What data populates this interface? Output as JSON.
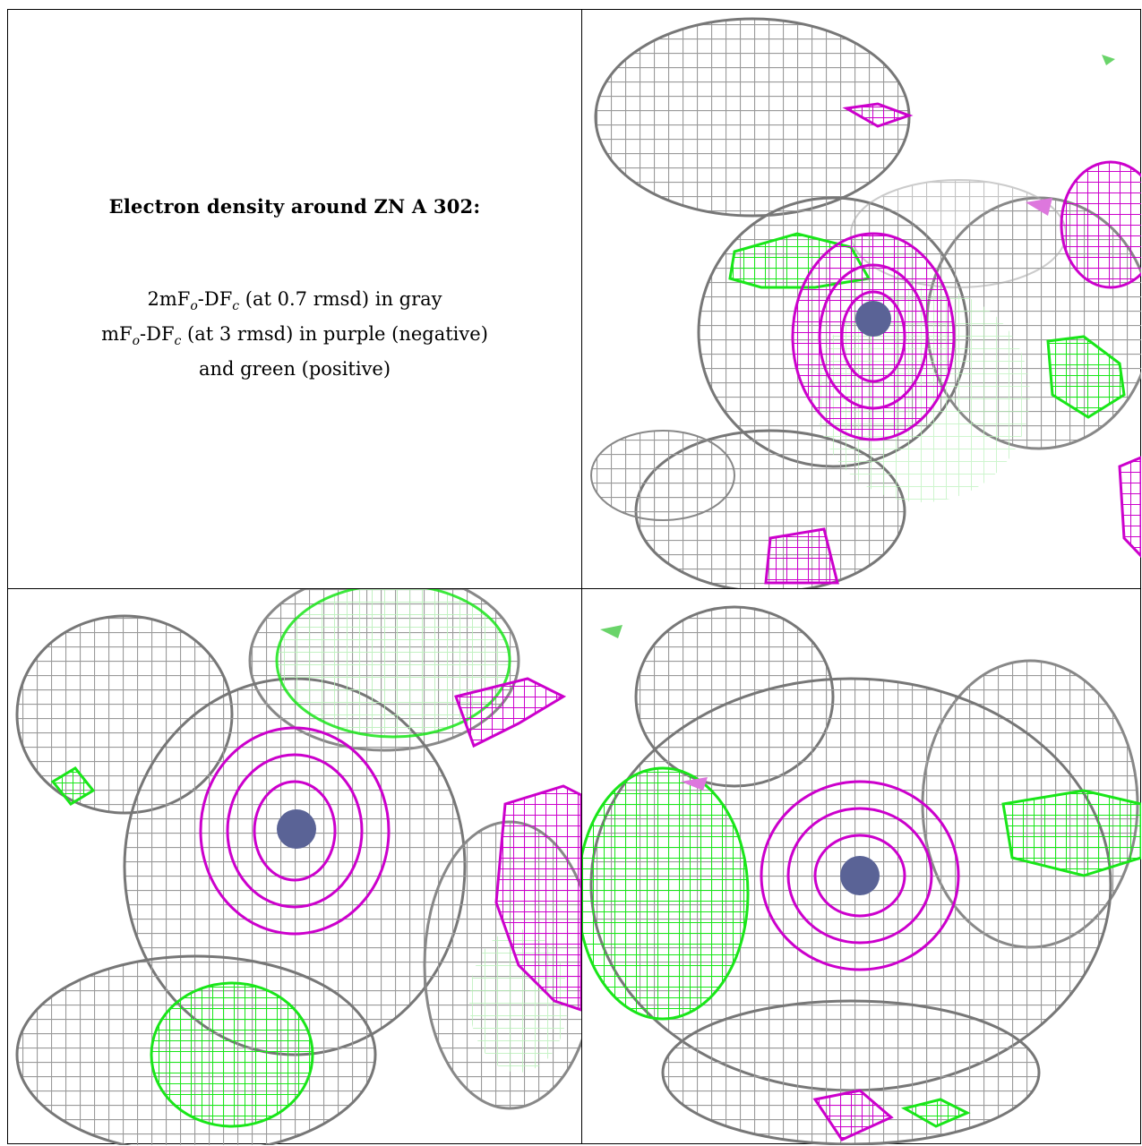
{
  "figure": {
    "title": "Electron density around ZN A 302:",
    "line1": {
      "prefix": "2mF",
      "sub1": "o",
      "mid": "-DF",
      "sub2": "c",
      "suffix": " (at 0.7 rmsd) in gray"
    },
    "line2": {
      "prefix": "mF",
      "sub1": "o",
      "mid": "-DF",
      "sub2": "c",
      "suffix": " (at 3 rmsd) in purple (negative)"
    },
    "line3": "and green (positive)"
  },
  "colors": {
    "gray_mesh": "#a9a9a9",
    "dark_mesh": "#6e6e6e",
    "purple_mesh": "#cc00cc",
    "green_mesh": "#19e619",
    "zinc_atom": "#5a6396",
    "border": "#000000"
  },
  "panels": [
    {
      "name": "view-top-right",
      "icon": "density-mesh"
    },
    {
      "name": "view-bottom-left",
      "icon": "density-mesh"
    },
    {
      "name": "view-bottom-right",
      "icon": "density-mesh"
    }
  ]
}
